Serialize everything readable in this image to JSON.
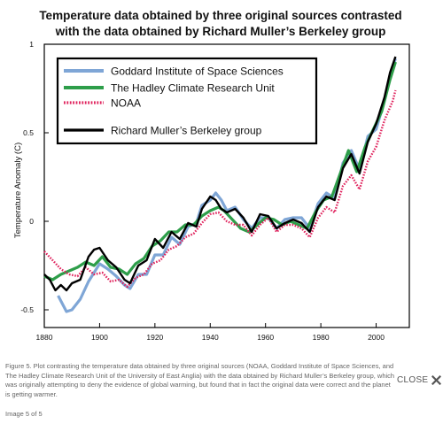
{
  "chart_data": {
    "type": "line",
    "title_lines": [
      "Temperature data obtained by three original sources contrasted",
      "with the data obtained by Richard Muller’s Berkeley group"
    ],
    "xlabel": "",
    "ylabel": "Temperature Anomaly (C)",
    "xlim": [
      1880,
      2012
    ],
    "ylim": [
      -0.6,
      1.0
    ],
    "x_ticks": [
      1880,
      1900,
      1920,
      1940,
      1960,
      1980,
      2000
    ],
    "y_ticks": [
      -0.5,
      0,
      0.5,
      1
    ],
    "y_tick_labels": [
      "-0.5",
      "0",
      "0.5",
      "1"
    ],
    "grid": false,
    "legend_placement": "top-left",
    "series": [
      {
        "name": "Goddard Institute of Space Sciences",
        "color": "#7fa6d6",
        "style": "solid",
        "points": [
          [
            1885,
            -0.42
          ],
          [
            1888,
            -0.51
          ],
          [
            1890,
            -0.5
          ],
          [
            1893,
            -0.44
          ],
          [
            1896,
            -0.34
          ],
          [
            1900,
            -0.24
          ],
          [
            1903,
            -0.27
          ],
          [
            1906,
            -0.31
          ],
          [
            1909,
            -0.36
          ],
          [
            1911,
            -0.38
          ],
          [
            1914,
            -0.3
          ],
          [
            1917,
            -0.3
          ],
          [
            1920,
            -0.19
          ],
          [
            1923,
            -0.19
          ],
          [
            1926,
            -0.09
          ],
          [
            1929,
            -0.13
          ],
          [
            1932,
            -0.03
          ],
          [
            1935,
            -0.01
          ],
          [
            1937,
            0.09
          ],
          [
            1940,
            0.12
          ],
          [
            1942,
            0.16
          ],
          [
            1944,
            0.12
          ],
          [
            1946,
            0.06
          ],
          [
            1949,
            0.08
          ],
          [
            1952,
            0.01
          ],
          [
            1955,
            -0.04
          ],
          [
            1958,
            0.02
          ],
          [
            1961,
            0.02
          ],
          [
            1964,
            -0.04
          ],
          [
            1967,
            0.01
          ],
          [
            1970,
            0.02
          ],
          [
            1973,
            0.02
          ],
          [
            1976,
            -0.04
          ],
          [
            1979,
            0.1
          ],
          [
            1982,
            0.16
          ],
          [
            1985,
            0.13
          ],
          [
            1988,
            0.33
          ],
          [
            1991,
            0.4
          ],
          [
            1994,
            0.29
          ],
          [
            1997,
            0.48
          ],
          [
            2000,
            0.52
          ],
          [
            2003,
            0.68
          ],
          [
            2005,
            0.82
          ],
          [
            2007,
            0.92
          ]
        ]
      },
      {
        "name": "The Hadley Climate Research Unit",
        "color": "#2e9e4a",
        "style": "solid",
        "points": [
          [
            1880,
            -0.31
          ],
          [
            1883,
            -0.33
          ],
          [
            1886,
            -0.3
          ],
          [
            1889,
            -0.28
          ],
          [
            1892,
            -0.26
          ],
          [
            1895,
            -0.23
          ],
          [
            1898,
            -0.25
          ],
          [
            1901,
            -0.2
          ],
          [
            1904,
            -0.26
          ],
          [
            1907,
            -0.27
          ],
          [
            1910,
            -0.3
          ],
          [
            1913,
            -0.24
          ],
          [
            1916,
            -0.21
          ],
          [
            1919,
            -0.14
          ],
          [
            1922,
            -0.11
          ],
          [
            1925,
            -0.06
          ],
          [
            1928,
            -0.06
          ],
          [
            1931,
            -0.02
          ],
          [
            1934,
            -0.02
          ],
          [
            1937,
            0.03
          ],
          [
            1940,
            0.06
          ],
          [
            1943,
            0.08
          ],
          [
            1945,
            0.06
          ],
          [
            1948,
            0.01
          ],
          [
            1951,
            -0.04
          ],
          [
            1954,
            -0.06
          ],
          [
            1957,
            -0.02
          ],
          [
            1960,
            0.02
          ],
          [
            1963,
            0.01
          ],
          [
            1966,
            -0.02
          ],
          [
            1969,
            0.0
          ],
          [
            1972,
            -0.02
          ],
          [
            1975,
            -0.04
          ],
          [
            1978,
            0.05
          ],
          [
            1981,
            0.12
          ],
          [
            1984,
            0.14
          ],
          [
            1987,
            0.27
          ],
          [
            1990,
            0.4
          ],
          [
            1993,
            0.28
          ],
          [
            1996,
            0.42
          ],
          [
            1999,
            0.52
          ],
          [
            2002,
            0.62
          ],
          [
            2005,
            0.8
          ],
          [
            2007,
            0.9
          ]
        ]
      },
      {
        "name": "NOAA",
        "color": "#e0245e",
        "style": "dotted",
        "points": [
          [
            1880,
            -0.17
          ],
          [
            1883,
            -0.22
          ],
          [
            1886,
            -0.27
          ],
          [
            1889,
            -0.3
          ],
          [
            1892,
            -0.31
          ],
          [
            1895,
            -0.26
          ],
          [
            1898,
            -0.3
          ],
          [
            1901,
            -0.29
          ],
          [
            1904,
            -0.34
          ],
          [
            1907,
            -0.33
          ],
          [
            1910,
            -0.37
          ],
          [
            1913,
            -0.32
          ],
          [
            1916,
            -0.3
          ],
          [
            1919,
            -0.24
          ],
          [
            1922,
            -0.22
          ],
          [
            1925,
            -0.16
          ],
          [
            1928,
            -0.14
          ],
          [
            1931,
            -0.09
          ],
          [
            1934,
            -0.07
          ],
          [
            1937,
            -0.01
          ],
          [
            1940,
            0.04
          ],
          [
            1943,
            0.05
          ],
          [
            1946,
            0.0
          ],
          [
            1949,
            -0.02
          ],
          [
            1952,
            -0.02
          ],
          [
            1955,
            -0.08
          ],
          [
            1958,
            -0.02
          ],
          [
            1961,
            0.02
          ],
          [
            1964,
            -0.06
          ],
          [
            1967,
            -0.02
          ],
          [
            1970,
            -0.02
          ],
          [
            1973,
            -0.04
          ],
          [
            1976,
            -0.09
          ],
          [
            1979,
            0.02
          ],
          [
            1982,
            0.08
          ],
          [
            1985,
            0.05
          ],
          [
            1988,
            0.2
          ],
          [
            1991,
            0.26
          ],
          [
            1994,
            0.18
          ],
          [
            1997,
            0.34
          ],
          [
            2000,
            0.42
          ],
          [
            2003,
            0.57
          ],
          [
            2006,
            0.68
          ],
          [
            2007,
            0.74
          ]
        ]
      },
      {
        "name": "Richard Muller’s Berkeley group",
        "color": "#000000",
        "style": "solid",
        "points": [
          [
            1880,
            -0.3
          ],
          [
            1882,
            -0.33
          ],
          [
            1884,
            -0.39
          ],
          [
            1886,
            -0.36
          ],
          [
            1888,
            -0.39
          ],
          [
            1890,
            -0.35
          ],
          [
            1893,
            -0.33
          ],
          [
            1896,
            -0.2
          ],
          [
            1898,
            -0.16
          ],
          [
            1900,
            -0.15
          ],
          [
            1903,
            -0.22
          ],
          [
            1906,
            -0.26
          ],
          [
            1909,
            -0.33
          ],
          [
            1911,
            -0.35
          ],
          [
            1914,
            -0.25
          ],
          [
            1917,
            -0.22
          ],
          [
            1920,
            -0.1
          ],
          [
            1923,
            -0.15
          ],
          [
            1926,
            -0.06
          ],
          [
            1929,
            -0.1
          ],
          [
            1932,
            -0.01
          ],
          [
            1935,
            -0.03
          ],
          [
            1937,
            0.07
          ],
          [
            1940,
            0.14
          ],
          [
            1942,
            0.12
          ],
          [
            1944,
            0.07
          ],
          [
            1946,
            0.05
          ],
          [
            1949,
            0.07
          ],
          [
            1952,
            0.02
          ],
          [
            1955,
            -0.06
          ],
          [
            1958,
            0.04
          ],
          [
            1961,
            0.03
          ],
          [
            1964,
            -0.04
          ],
          [
            1967,
            -0.01
          ],
          [
            1970,
            0.01
          ],
          [
            1973,
            -0.01
          ],
          [
            1976,
            -0.06
          ],
          [
            1979,
            0.08
          ],
          [
            1982,
            0.14
          ],
          [
            1985,
            0.12
          ],
          [
            1988,
            0.3
          ],
          [
            1991,
            0.38
          ],
          [
            1994,
            0.27
          ],
          [
            1997,
            0.45
          ],
          [
            2000,
            0.55
          ],
          [
            2003,
            0.7
          ],
          [
            2005,
            0.84
          ],
          [
            2007,
            0.93
          ]
        ]
      }
    ]
  },
  "caption": "Figure 5. Plot contrasting the temperature data obtained by three original sources (NOAA, Goddard Institute of Space Sciences, and The Hadley Climate Research Unit of the University of East Anglia) with the data obtained by Richard Muller’s Berkeley group, which was originally attempting to deny the evidence of global warming, but found that in fact the original data were correct and the planet is getting warmer.",
  "close_label": "CLOSE",
  "image_counter": "Image 5 of 5",
  "colors": {
    "axis": "#000000",
    "caption_text": "#666666"
  }
}
